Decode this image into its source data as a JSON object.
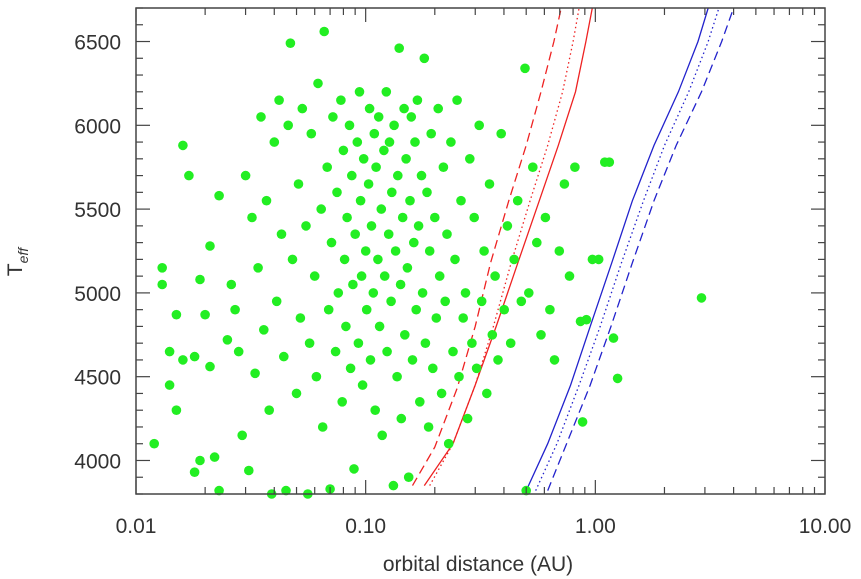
{
  "chart_data": {
    "type": "scatter",
    "title": "",
    "xlabel": "orbital distance (AU)",
    "ylabel_main": "T",
    "ylabel_sub": "eff",
    "x_scale": "log",
    "xlim": [
      0.01,
      10.0
    ],
    "ylim": [
      3800,
      6700
    ],
    "x_ticks": [
      0.01,
      0.1,
      1.0,
      10.0
    ],
    "x_tick_labels": [
      "0.01",
      "0.10",
      "1.00",
      "10.00"
    ],
    "y_ticks": [
      4000,
      4500,
      5000,
      5500,
      6000,
      6500
    ],
    "y_tick_labels": [
      "4000",
      "4500",
      "5000",
      "5500",
      "6000",
      "6500"
    ],
    "grid": false,
    "marker_color": "#22ee22",
    "series": [
      {
        "color": "#22ee22",
        "marker": "filled-circle",
        "points": [
          [
            0.012,
            4100
          ],
          [
            0.013,
            5150
          ],
          [
            0.013,
            5050
          ],
          [
            0.014,
            4650
          ],
          [
            0.014,
            4450
          ],
          [
            0.015,
            4870
          ],
          [
            0.015,
            4300
          ],
          [
            0.016,
            5880
          ],
          [
            0.016,
            4600
          ],
          [
            0.017,
            5700
          ],
          [
            0.018,
            4620
          ],
          [
            0.018,
            3930
          ],
          [
            0.019,
            5080
          ],
          [
            0.019,
            4000
          ],
          [
            0.02,
            4870
          ],
          [
            0.021,
            4560
          ],
          [
            0.021,
            5280
          ],
          [
            0.022,
            4020
          ],
          [
            0.023,
            5580
          ],
          [
            0.023,
            3820
          ],
          [
            0.025,
            4720
          ],
          [
            0.026,
            5050
          ],
          [
            0.027,
            4900
          ],
          [
            0.028,
            4650
          ],
          [
            0.029,
            4150
          ],
          [
            0.03,
            5700
          ],
          [
            0.031,
            3940
          ],
          [
            0.032,
            5450
          ],
          [
            0.033,
            4520
          ],
          [
            0.034,
            5150
          ],
          [
            0.035,
            6050
          ],
          [
            0.036,
            4780
          ],
          [
            0.037,
            5550
          ],
          [
            0.038,
            4300
          ],
          [
            0.039,
            3800
          ],
          [
            0.04,
            5900
          ],
          [
            0.041,
            4950
          ],
          [
            0.042,
            6150
          ],
          [
            0.043,
            5350
          ],
          [
            0.044,
            4620
          ],
          [
            0.045,
            3820
          ],
          [
            0.046,
            6000
          ],
          [
            0.047,
            6490
          ],
          [
            0.048,
            5200
          ],
          [
            0.05,
            4400
          ],
          [
            0.051,
            5650
          ],
          [
            0.052,
            4850
          ],
          [
            0.053,
            6100
          ],
          [
            0.055,
            5400
          ],
          [
            0.056,
            3800
          ],
          [
            0.057,
            4700
          ],
          [
            0.058,
            5950
          ],
          [
            0.06,
            5100
          ],
          [
            0.061,
            4500
          ],
          [
            0.062,
            6250
          ],
          [
            0.064,
            5500
          ],
          [
            0.065,
            4200
          ],
          [
            0.066,
            6560
          ],
          [
            0.068,
            5750
          ],
          [
            0.069,
            4900
          ],
          [
            0.07,
            3830
          ],
          [
            0.071,
            5300
          ],
          [
            0.072,
            6050
          ],
          [
            0.074,
            4650
          ],
          [
            0.075,
            5600
          ],
          [
            0.076,
            5000
          ],
          [
            0.078,
            6150
          ],
          [
            0.079,
            4350
          ],
          [
            0.08,
            5850
          ],
          [
            0.081,
            5200
          ],
          [
            0.082,
            4800
          ],
          [
            0.083,
            5450
          ],
          [
            0.085,
            6000
          ],
          [
            0.086,
            4550
          ],
          [
            0.087,
            5700
          ],
          [
            0.088,
            5050
          ],
          [
            0.089,
            3950
          ],
          [
            0.09,
            5350
          ],
          [
            0.092,
            5900
          ],
          [
            0.093,
            4700
          ],
          [
            0.094,
            6200
          ],
          [
            0.095,
            5550
          ],
          [
            0.096,
            5100
          ],
          [
            0.097,
            4450
          ],
          [
            0.098,
            5800
          ],
          [
            0.1,
            5250
          ],
          [
            0.101,
            4900
          ],
          [
            0.103,
            5650
          ],
          [
            0.104,
            6100
          ],
          [
            0.105,
            4600
          ],
          [
            0.106,
            5400
          ],
          [
            0.108,
            5000
          ],
          [
            0.109,
            5950
          ],
          [
            0.11,
            4300
          ],
          [
            0.111,
            5750
          ],
          [
            0.113,
            5200
          ],
          [
            0.114,
            6050
          ],
          [
            0.115,
            4800
          ],
          [
            0.117,
            5500
          ],
          [
            0.118,
            4150
          ],
          [
            0.12,
            5850
          ],
          [
            0.121,
            5100
          ],
          [
            0.123,
            6200
          ],
          [
            0.124,
            4650
          ],
          [
            0.126,
            5350
          ],
          [
            0.127,
            5900
          ],
          [
            0.129,
            4950
          ],
          [
            0.13,
            5600
          ],
          [
            0.132,
            3850
          ],
          [
            0.133,
            6000
          ],
          [
            0.135,
            5250
          ],
          [
            0.137,
            4500
          ],
          [
            0.138,
            5700
          ],
          [
            0.14,
            6460
          ],
          [
            0.142,
            5050
          ],
          [
            0.143,
            4250
          ],
          [
            0.145,
            5450
          ],
          [
            0.147,
            6100
          ],
          [
            0.148,
            4750
          ],
          [
            0.15,
            5800
          ],
          [
            0.152,
            5150
          ],
          [
            0.154,
            3900
          ],
          [
            0.156,
            5550
          ],
          [
            0.158,
            6050
          ],
          [
            0.16,
            4600
          ],
          [
            0.162,
            5300
          ],
          [
            0.164,
            5900
          ],
          [
            0.166,
            4900
          ],
          [
            0.168,
            6150
          ],
          [
            0.17,
            5400
          ],
          [
            0.172,
            4350
          ],
          [
            0.175,
            5700
          ],
          [
            0.177,
            5000
          ],
          [
            0.18,
            6400
          ],
          [
            0.182,
            4700
          ],
          [
            0.185,
            5600
          ],
          [
            0.188,
            4200
          ],
          [
            0.19,
            5250
          ],
          [
            0.193,
            5950
          ],
          [
            0.196,
            4550
          ],
          [
            0.2,
            5450
          ],
          [
            0.203,
            4850
          ],
          [
            0.207,
            6100
          ],
          [
            0.21,
            5100
          ],
          [
            0.214,
            4400
          ],
          [
            0.218,
            5750
          ],
          [
            0.222,
            4950
          ],
          [
            0.226,
            5350
          ],
          [
            0.23,
            4100
          ],
          [
            0.235,
            5900
          ],
          [
            0.24,
            4650
          ],
          [
            0.245,
            5200
          ],
          [
            0.25,
            6150
          ],
          [
            0.255,
            4500
          ],
          [
            0.26,
            5550
          ],
          [
            0.266,
            4850
          ],
          [
            0.272,
            5000
          ],
          [
            0.278,
            4250
          ],
          [
            0.284,
            5800
          ],
          [
            0.29,
            4700
          ],
          [
            0.297,
            5450
          ],
          [
            0.304,
            4550
          ],
          [
            0.312,
            6000
          ],
          [
            0.32,
            4950
          ],
          [
            0.328,
            5250
          ],
          [
            0.337,
            4400
          ],
          [
            0.346,
            5650
          ],
          [
            0.356,
            4750
          ],
          [
            0.366,
            5100
          ],
          [
            0.377,
            4600
          ],
          [
            0.389,
            5950
          ],
          [
            0.401,
            4900
          ],
          [
            0.414,
            5400
          ],
          [
            0.428,
            4700
          ],
          [
            0.443,
            5200
          ],
          [
            0.459,
            5550
          ],
          [
            0.476,
            4950
          ],
          [
            0.494,
            6340
          ],
          [
            0.5,
            3820
          ],
          [
            0.513,
            5000
          ],
          [
            0.534,
            5750
          ],
          [
            0.556,
            5300
          ],
          [
            0.58,
            4750
          ],
          [
            0.606,
            5450
          ],
          [
            0.634,
            4900
          ],
          [
            0.664,
            4600
          ],
          [
            0.697,
            5250
          ],
          [
            0.733,
            5650
          ],
          [
            0.772,
            5100
          ],
          [
            0.815,
            5750
          ],
          [
            0.862,
            4830
          ],
          [
            0.88,
            4230
          ],
          [
            0.914,
            4840
          ],
          [
            0.971,
            5200
          ],
          [
            1.034,
            5200
          ],
          [
            1.1,
            5780
          ],
          [
            1.15,
            5780
          ],
          [
            1.2,
            4730
          ],
          [
            1.25,
            4490
          ],
          [
            2.9,
            4970
          ]
        ]
      }
    ],
    "curves": [
      {
        "color": "#ee2222",
        "style": "dashed",
        "points": [
          [
            0.16,
            3850
          ],
          [
            0.2,
            4080
          ],
          [
            0.25,
            4430
          ],
          [
            0.3,
            4800
          ],
          [
            0.35,
            5180
          ],
          [
            0.42,
            5550
          ],
          [
            0.5,
            5880
          ],
          [
            0.58,
            6200
          ],
          [
            0.66,
            6500
          ],
          [
            0.71,
            6700
          ]
        ]
      },
      {
        "color": "#ee2222",
        "style": "dotted",
        "points": [
          [
            0.19,
            3850
          ],
          [
            0.24,
            4100
          ],
          [
            0.3,
            4450
          ],
          [
            0.36,
            4800
          ],
          [
            0.43,
            5180
          ],
          [
            0.52,
            5550
          ],
          [
            0.62,
            5880
          ],
          [
            0.72,
            6200
          ],
          [
            0.8,
            6500
          ],
          [
            0.85,
            6700
          ]
        ]
      },
      {
        "color": "#ee2222",
        "style": "solid",
        "points": [
          [
            0.18,
            3850
          ],
          [
            0.24,
            4100
          ],
          [
            0.3,
            4450
          ],
          [
            0.37,
            4800
          ],
          [
            0.46,
            5180
          ],
          [
            0.57,
            5550
          ],
          [
            0.69,
            5880
          ],
          [
            0.82,
            6200
          ],
          [
            0.91,
            6500
          ],
          [
            0.97,
            6700
          ]
        ]
      },
      {
        "color": "#2222cc",
        "style": "solid",
        "points": [
          [
            0.5,
            3820
          ],
          [
            0.62,
            4100
          ],
          [
            0.78,
            4450
          ],
          [
            0.95,
            4800
          ],
          [
            1.18,
            5180
          ],
          [
            1.45,
            5550
          ],
          [
            1.8,
            5880
          ],
          [
            2.3,
            6200
          ],
          [
            2.8,
            6500
          ],
          [
            3.1,
            6700
          ]
        ]
      },
      {
        "color": "#2222cc",
        "style": "dotted",
        "points": [
          [
            0.55,
            3820
          ],
          [
            0.68,
            4100
          ],
          [
            0.85,
            4450
          ],
          [
            1.05,
            4800
          ],
          [
            1.3,
            5180
          ],
          [
            1.62,
            5550
          ],
          [
            2.0,
            5880
          ],
          [
            2.55,
            6200
          ],
          [
            3.1,
            6500
          ],
          [
            3.45,
            6700
          ]
        ]
      },
      {
        "color": "#2222cc",
        "style": "dashed",
        "points": [
          [
            0.62,
            3820
          ],
          [
            0.75,
            4100
          ],
          [
            0.95,
            4450
          ],
          [
            1.17,
            4800
          ],
          [
            1.45,
            5180
          ],
          [
            1.8,
            5550
          ],
          [
            2.25,
            5880
          ],
          [
            2.9,
            6200
          ],
          [
            3.55,
            6500
          ],
          [
            4.0,
            6700
          ]
        ]
      }
    ]
  }
}
